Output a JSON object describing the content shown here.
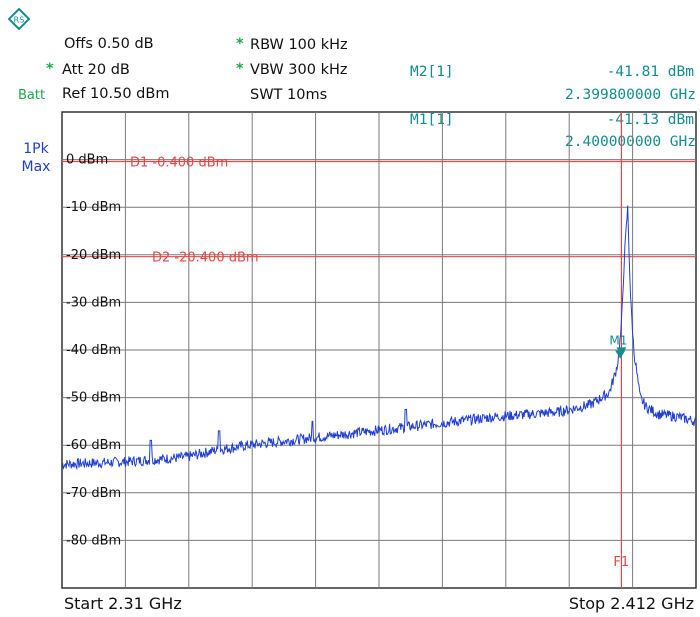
{
  "header": {
    "offset": "Offs 0.50 dB",
    "att": "Att  20 dB",
    "ref": "Ref  10.50 dBm",
    "rbw": "RBW 100 kHz",
    "vbw": "VBW 300 kHz",
    "swt": "SWT 10ms",
    "batt": "Batt",
    "star": "*"
  },
  "markers": [
    {
      "label": "M2[1]",
      "level": "-41.81 dBm",
      "freq": "2.399800000 GHz"
    },
    {
      "label": "M1[1]",
      "level": "-41.13 dBm",
      "freq": "2.400000000 GHz"
    }
  ],
  "trace_label": {
    "line1": "1Pk",
    "line2": "Max"
  },
  "footer": {
    "start": "Start 2.31 GHz",
    "stop": "Stop 2.412 GHz"
  },
  "chart_data": {
    "type": "line",
    "x_range_ghz": [
      2.31,
      2.412
    ],
    "ylim": [
      -90,
      10
    ],
    "y_ticks": [
      "0 dBm",
      "-10 dBm",
      "-20 dBm",
      "-30 dBm",
      "-40 dBm",
      "-50 dBm",
      "-60 dBm",
      "-70 dBm",
      "-80 dBm"
    ],
    "y_tick_values": [
      0,
      -10,
      -20,
      -30,
      -40,
      -50,
      -60,
      -70,
      -80
    ],
    "grid": true,
    "display_lines": [
      {
        "name": "D1",
        "value": -0.4,
        "label": "D1  -0.400 dBm"
      },
      {
        "name": "D2",
        "value": -20.4,
        "label": "D2  -20.400 dBm"
      }
    ],
    "freq_line": {
      "label": "F1",
      "x_ghz": 2.4
    },
    "marker_symbol": "M1",
    "series": [
      {
        "x": [
          2.31,
          2.32,
          2.33,
          2.335,
          2.34,
          2.35,
          2.36,
          2.37,
          2.38,
          2.385,
          2.39,
          2.395,
          2.398,
          2.399,
          2.3995,
          2.4,
          2.4005,
          2.401,
          2.4015,
          2.402,
          2.403,
          2.404,
          2.406,
          2.409,
          2.412
        ],
        "y": [
          -64,
          -63.5,
          -62.5,
          -61,
          -60,
          -58.5,
          -57,
          -55.5,
          -54,
          -53.5,
          -53,
          -51.5,
          -49,
          -45,
          -42,
          -35,
          -20,
          -10,
          -30,
          -40,
          -50,
          -52,
          -53.5,
          -54,
          -55
        ]
      }
    ],
    "spurs": [
      {
        "x": 2.3243,
        "y": -59
      },
      {
        "x": 2.3353,
        "y": -57
      },
      {
        "x": 2.3503,
        "y": -55
      },
      {
        "x": 2.3653,
        "y": -52.5
      }
    ],
    "marker_points": [
      {
        "name": "M1",
        "x": 2.4,
        "y": -41.13
      },
      {
        "name": "M2",
        "x": 2.3998,
        "y": -41.81
      }
    ],
    "colors": {
      "trace": "#1f3fd1",
      "display_line": "#e14848",
      "grid": "#7a7a7a",
      "marker": "#138c8c"
    }
  }
}
